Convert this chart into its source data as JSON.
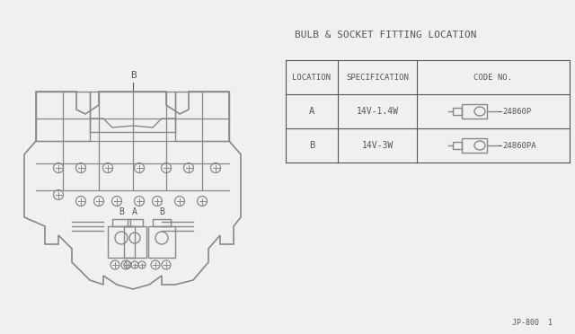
{
  "title": "BULB & SOCKET FITTING LOCATION",
  "bg_color": "#f0f0f0",
  "line_color": "#888888",
  "table_header": [
    "LOCATION",
    "SPECIFICATION",
    "CODE NO."
  ],
  "table_rows": [
    [
      "A",
      "14V-1.4W",
      "24860P"
    ],
    [
      "B",
      "14V-3W",
      "24860PA"
    ]
  ],
  "watermark": "JP-800  1",
  "label_A": "A",
  "label_B": "B",
  "label_B_bottom": "B"
}
